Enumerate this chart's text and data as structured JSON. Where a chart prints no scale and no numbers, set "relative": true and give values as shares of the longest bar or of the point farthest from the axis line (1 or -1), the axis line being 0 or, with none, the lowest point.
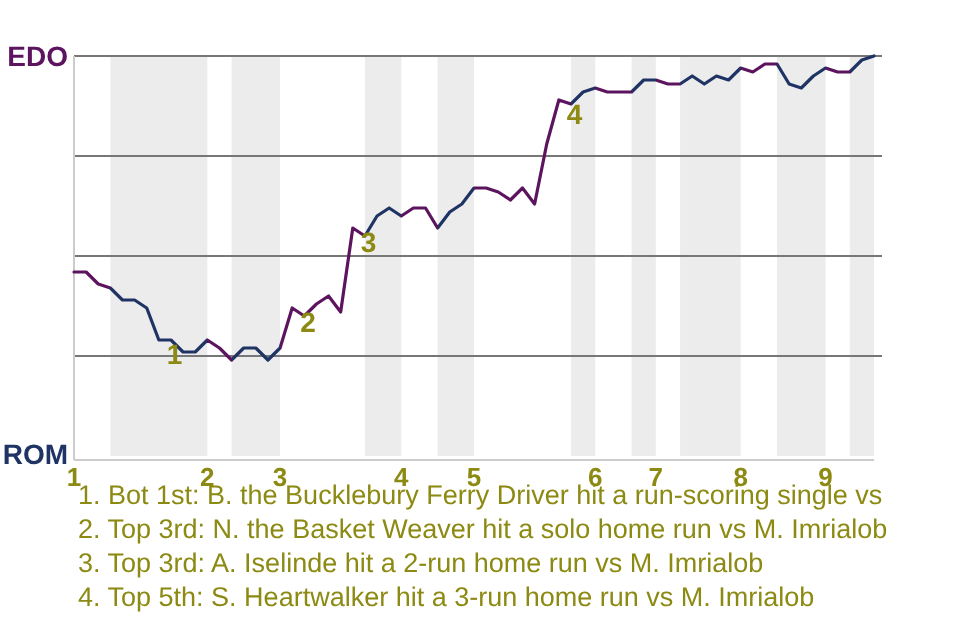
{
  "chart_data": {
    "type": "line",
    "relative": true,
    "grid": "y",
    "categories": [
      "1",
      null,
      null,
      null,
      null,
      null,
      null,
      null,
      null,
      null,
      null,
      "2",
      null,
      null,
      null,
      null,
      null,
      "3",
      null,
      null,
      null,
      null,
      null,
      null,
      null,
      null,
      null,
      "4",
      null,
      null,
      null,
      null,
      null,
      "5",
      null,
      null,
      null,
      null,
      null,
      null,
      null,
      null,
      null,
      "6",
      null,
      null,
      null,
      null,
      "7",
      null,
      null,
      null,
      null,
      null,
      null,
      "8",
      null,
      null,
      null,
      null,
      null,
      null,
      "9",
      null,
      null,
      null,
      null
    ],
    "series": [
      {
        "color": "#1f3464",
        "values": [
          0.46,
          0.46,
          0.43,
          0.42,
          0.39,
          0.39,
          0.37,
          0.29,
          0.29,
          0.26,
          0.26,
          0.29,
          0.27,
          0.24,
          0.27,
          0.27,
          0.24,
          0.27,
          0.37,
          0.35,
          0.38,
          0.4,
          0.36,
          0.57,
          0.55,
          0.6,
          0.62,
          0.6,
          0.62,
          0.62,
          0.57,
          0.61,
          0.63,
          0.67,
          0.67,
          0.66,
          0.64,
          0.67,
          0.63,
          0.78,
          0.89,
          0.88,
          0.91,
          0.92,
          0.91,
          0.91,
          0.91,
          0.94,
          0.94,
          0.93,
          0.93,
          0.95,
          0.93,
          0.95,
          0.94,
          0.97,
          0.96,
          0.98,
          0.98,
          0.93,
          0.92,
          0.95,
          0.97,
          0.96,
          0.96,
          0.99,
          1.0
        ],
        "colors": [
          "#5c145e",
          "#5c145e",
          "#5c145e",
          "#5c145e",
          "#1f3464",
          "#1f3464",
          "#1f3464",
          "#1f3464",
          "#1f3464",
          "#1f3464",
          "#1f3464",
          "#1f3464",
          "#5c145e",
          "#5c145e",
          "#1f3464",
          "#1f3464",
          "#1f3464",
          "#1f3464",
          "#5c145e",
          "#5c145e",
          "#5c145e",
          "#5c145e",
          "#5c145e",
          "#5c145e",
          "#5c145e",
          "#1f3464",
          "#1f3464",
          "#1f3464",
          "#5c145e",
          "#5c145e",
          "#5c145e",
          "#1f3464",
          "#1f3464",
          "#1f3464",
          "#5c145e",
          "#5c145e",
          "#5c145e",
          "#5c145e",
          "#5c145e",
          "#5c145e",
          "#5c145e",
          "#5c145e",
          "#1f3464",
          "#1f3464",
          "#5c145e",
          "#5c145e",
          "#5c145e",
          "#1f3464",
          "#1f3464",
          "#5c145e",
          "#5c145e",
          "#1f3464",
          "#1f3464",
          "#1f3464",
          "#1f3464",
          "#1f3464",
          "#5c145e",
          "#5c145e",
          "#5c145e",
          "#1f3464",
          "#1f3464",
          "#1f3464",
          "#1f3464",
          "#5c145e",
          "#5c145e",
          "#1f3464",
          "#1f3464"
        ]
      }
    ],
    "annotations": [
      "EDO",
      "ROM",
      {
        "text": "1",
        "y": 0.29
      },
      {
        "text": "2",
        "y": 0.37
      },
      {
        "text": "3",
        "y": 0.57
      },
      {
        "text": "4",
        "y": 0.89
      },
      "1. Bot 1st: B. the Bucklebury Ferry Driver hit a run-scoring single vs",
      "2. Top 3rd: N. the Basket Weaver hit a solo home run vs M. Imrialob",
      "3. Top 3rd: A. Iselinde hit a 2-run home run vs M. Imrialob",
      "4. Top 5th: S. Heartwalker hit a 3-run home run vs M. Imrialob"
    ]
  }
}
